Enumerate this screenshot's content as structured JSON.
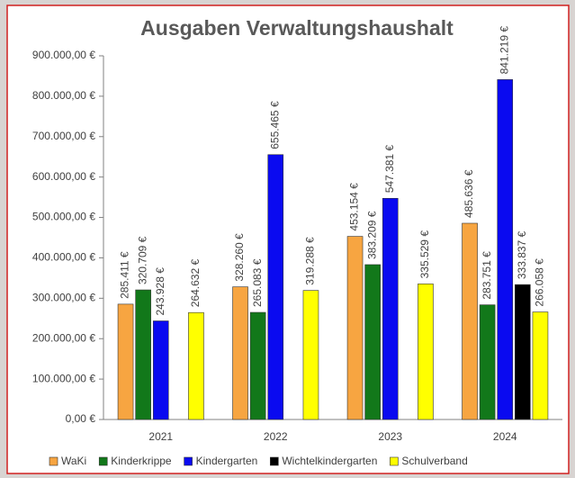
{
  "chart_data": {
    "type": "bar",
    "title": "Ausgaben Verwaltungshaushalt",
    "categories": [
      "2021",
      "2022",
      "2023",
      "2024"
    ],
    "series": [
      {
        "name": "WaKi",
        "color": "#f7a541",
        "values": [
          285411,
          328260,
          453154,
          485636
        ],
        "value_labels": [
          "285.411 €",
          "328.260 €",
          "453.154 €",
          "485.636 €"
        ]
      },
      {
        "name": "Kinderkrippe",
        "color": "#12781a",
        "values": [
          320709,
          265083,
          383209,
          283751
        ],
        "value_labels": [
          "320.709 €",
          "265.083 €",
          "383.209 €",
          "283.751 €"
        ]
      },
      {
        "name": "Kindergarten",
        "color": "#0a0af0",
        "values": [
          243928,
          655465,
          547381,
          841219
        ],
        "value_labels": [
          "243.928 €",
          "655.465 €",
          "547.381 €",
          "841.219 €"
        ]
      },
      {
        "name": "Wichtelkindergarten",
        "color": "#000000",
        "values": [
          null,
          null,
          null,
          333837
        ],
        "value_labels": [
          null,
          null,
          null,
          "333.837 €"
        ]
      },
      {
        "name": "Schulverband",
        "color": "#ffff00",
        "values": [
          264632,
          319288,
          335529,
          266058
        ],
        "value_labels": [
          "264.632 €",
          "319.288 €",
          "335.529 €",
          "266.058 €"
        ]
      }
    ],
    "ylim": [
      0,
      900000
    ],
    "yticks": [
      {
        "value": 0,
        "label": "0,00 €"
      },
      {
        "value": 100000,
        "label": "100.000,00 €"
      },
      {
        "value": 200000,
        "label": "200.000,00 €"
      },
      {
        "value": 300000,
        "label": "300.000,00 €"
      },
      {
        "value": 400000,
        "label": "400.000,00 €"
      },
      {
        "value": 500000,
        "label": "500.000,00 €"
      },
      {
        "value": 600000,
        "label": "600.000,00 €"
      },
      {
        "value": 700000,
        "label": "700.000,00 €"
      },
      {
        "value": 800000,
        "label": "800.000,00 €"
      },
      {
        "value": 900000,
        "label": "900.000,00 €"
      }
    ],
    "grid": false,
    "legend": "bottom"
  }
}
